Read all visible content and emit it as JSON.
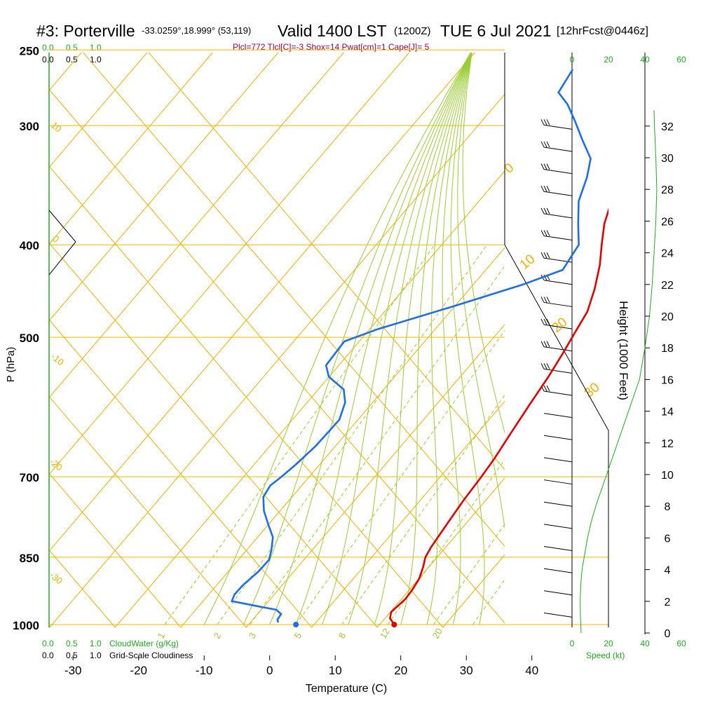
{
  "header": {
    "station": "#3: Porterville",
    "coords": "-33.0259°,18.999° (53,119)",
    "valid": "Valid 1400 LST",
    "utc": "(1200Z)",
    "date": "TUE 6 Jul 2021",
    "forecast": "[12hrFcst@0446z]",
    "indices": "Plcl=772 Tlcl[C]=-3 Shox=14 Pwat[cm]=1 Cape[J]= 5"
  },
  "colors": {
    "isobar": "#f5b800",
    "dry_adiabat": "#f0b000",
    "moist_adiabat": "#9acd32",
    "mixing_ratio": "#9acd32",
    "temperature": "#e00000",
    "dewpoint": "#1e6fe6",
    "cloud_water": "#22aa22",
    "wind_speed": "#22aa22",
    "indices_text": "#a0004a",
    "axis": "#000000"
  },
  "chart_data": {
    "type": "line",
    "title": "#3: Porterville  Valid 1400 LST (1200Z) TUE 6 Jul 2021 [12hrFcst@0446z]",
    "xlabel": "Temperature (C)",
    "ylabel": "P (hPa)",
    "y2label": "Height (1000 Feet)",
    "x_ticks": [
      "-30",
      "-20",
      "-10",
      "0",
      "10",
      "20",
      "30",
      "40"
    ],
    "pressure_ticks": [
      "250",
      "300",
      "400",
      "500",
      "700",
      "850",
      "1000"
    ],
    "height_ticks": [
      "0",
      "2",
      "4",
      "6",
      "8",
      "10",
      "12",
      "14",
      "16",
      "18",
      "20",
      "22",
      "24",
      "26",
      "28",
      "30",
      "32"
    ],
    "cloud_scale": [
      "0.0",
      "0.5",
      "1.0"
    ],
    "cloudwater_label": "CloudWater (g/Kg)",
    "cloudiness_label": "Grid-Scale Cloudiness",
    "speed_label": "Speed (kt)",
    "speed_ticks": [
      "0",
      "20",
      "40",
      "60"
    ],
    "mixing_ratio_labels": [
      "1",
      "2",
      "3",
      "5",
      "8",
      "12",
      "20"
    ],
    "dry_adiabat_labels": [
      "10",
      "0",
      "-10",
      "-20",
      "-30"
    ],
    "moist_adiabat_labels": [
      "0",
      "10",
      "20",
      "30"
    ],
    "series": [
      {
        "name": "Temperature",
        "points": [
          [
            19,
            1000
          ],
          [
            17.5,
            985
          ],
          [
            16.8,
            970
          ],
          [
            17,
            955
          ],
          [
            17.2,
            940
          ],
          [
            17,
            920
          ],
          [
            16.5,
            895
          ],
          [
            15.5,
            870
          ],
          [
            14.5,
            850
          ],
          [
            14,
            830
          ],
          [
            13.5,
            800
          ],
          [
            13,
            770
          ],
          [
            12.5,
            740
          ],
          [
            12,
            700
          ],
          [
            11.5,
            670
          ],
          [
            10.5,
            630
          ],
          [
            9.5,
            590
          ],
          [
            8.5,
            550
          ],
          [
            7.5,
            520
          ],
          [
            6.5,
            495
          ],
          [
            5.5,
            470
          ],
          [
            3.5,
            445
          ],
          [
            1,
            420
          ],
          [
            -1.5,
            400
          ],
          [
            -4,
            380
          ],
          [
            -6,
            360
          ],
          [
            -8,
            345
          ],
          [
            -9.5,
            330
          ],
          [
            -10.5,
            315
          ],
          [
            -11.5,
            300
          ],
          [
            -13,
            287
          ],
          [
            -14.5,
            275
          ],
          [
            -16.5,
            262
          ]
        ]
      },
      {
        "name": "Dewpoint",
        "points": [
          [
            1,
            995
          ],
          [
            0.5,
            988
          ],
          [
            0.3,
            975
          ],
          [
            -1,
            965
          ],
          [
            -5,
            955
          ],
          [
            -9,
            945
          ],
          [
            -9.5,
            930
          ],
          [
            -9.5,
            910
          ],
          [
            -9,
            880
          ],
          [
            -9,
            855
          ],
          [
            -10,
            835
          ],
          [
            -11.5,
            810
          ],
          [
            -14,
            785
          ],
          [
            -16.5,
            760
          ],
          [
            -18.5,
            735
          ],
          [
            -19,
            715
          ],
          [
            -18.5,
            700
          ],
          [
            -18,
            680
          ],
          [
            -17.5,
            650
          ],
          [
            -17.5,
            625
          ],
          [
            -17.5,
            610
          ],
          [
            -19,
            585
          ],
          [
            -21,
            567
          ],
          [
            -25,
            550
          ],
          [
            -27,
            535
          ],
          [
            -27.5,
            505
          ],
          [
            -24,
            490
          ],
          [
            -16,
            465
          ],
          [
            -8,
            440
          ],
          [
            -4,
            425
          ],
          [
            -5,
            400
          ],
          [
            -8,
            380
          ],
          [
            -11,
            360
          ],
          [
            -13,
            340
          ],
          [
            -15,
            325
          ],
          [
            -19,
            310
          ],
          [
            -22.5,
            297
          ],
          [
            -26,
            285
          ],
          [
            -29,
            277
          ],
          [
            -30,
            262
          ]
        ]
      }
    ],
    "surface_points": {
      "temperature": [
        19,
        1000
      ],
      "dewpoint": [
        4,
        1000
      ]
    },
    "wind_speed_kt": [
      [
        100,
        0
      ],
      [
        92,
        1
      ],
      [
        90,
        2
      ],
      [
        95,
        3
      ],
      [
        110,
        4
      ],
      [
        140,
        5
      ],
      [
        170,
        6
      ],
      [
        210,
        7
      ],
      [
        260,
        8
      ],
      [
        320,
        9
      ],
      [
        380,
        10
      ],
      [
        440,
        11
      ],
      [
        500,
        12
      ],
      [
        560,
        13
      ],
      [
        620,
        14
      ],
      [
        680,
        15
      ],
      [
        740,
        16
      ],
      [
        800,
        18
      ],
      [
        850,
        20
      ],
      [
        880,
        22
      ],
      [
        900,
        24
      ],
      [
        920,
        26
      ],
      [
        930,
        28
      ],
      [
        920,
        30
      ],
      [
        905,
        32
      ],
      [
        900,
        33
      ]
    ]
  }
}
